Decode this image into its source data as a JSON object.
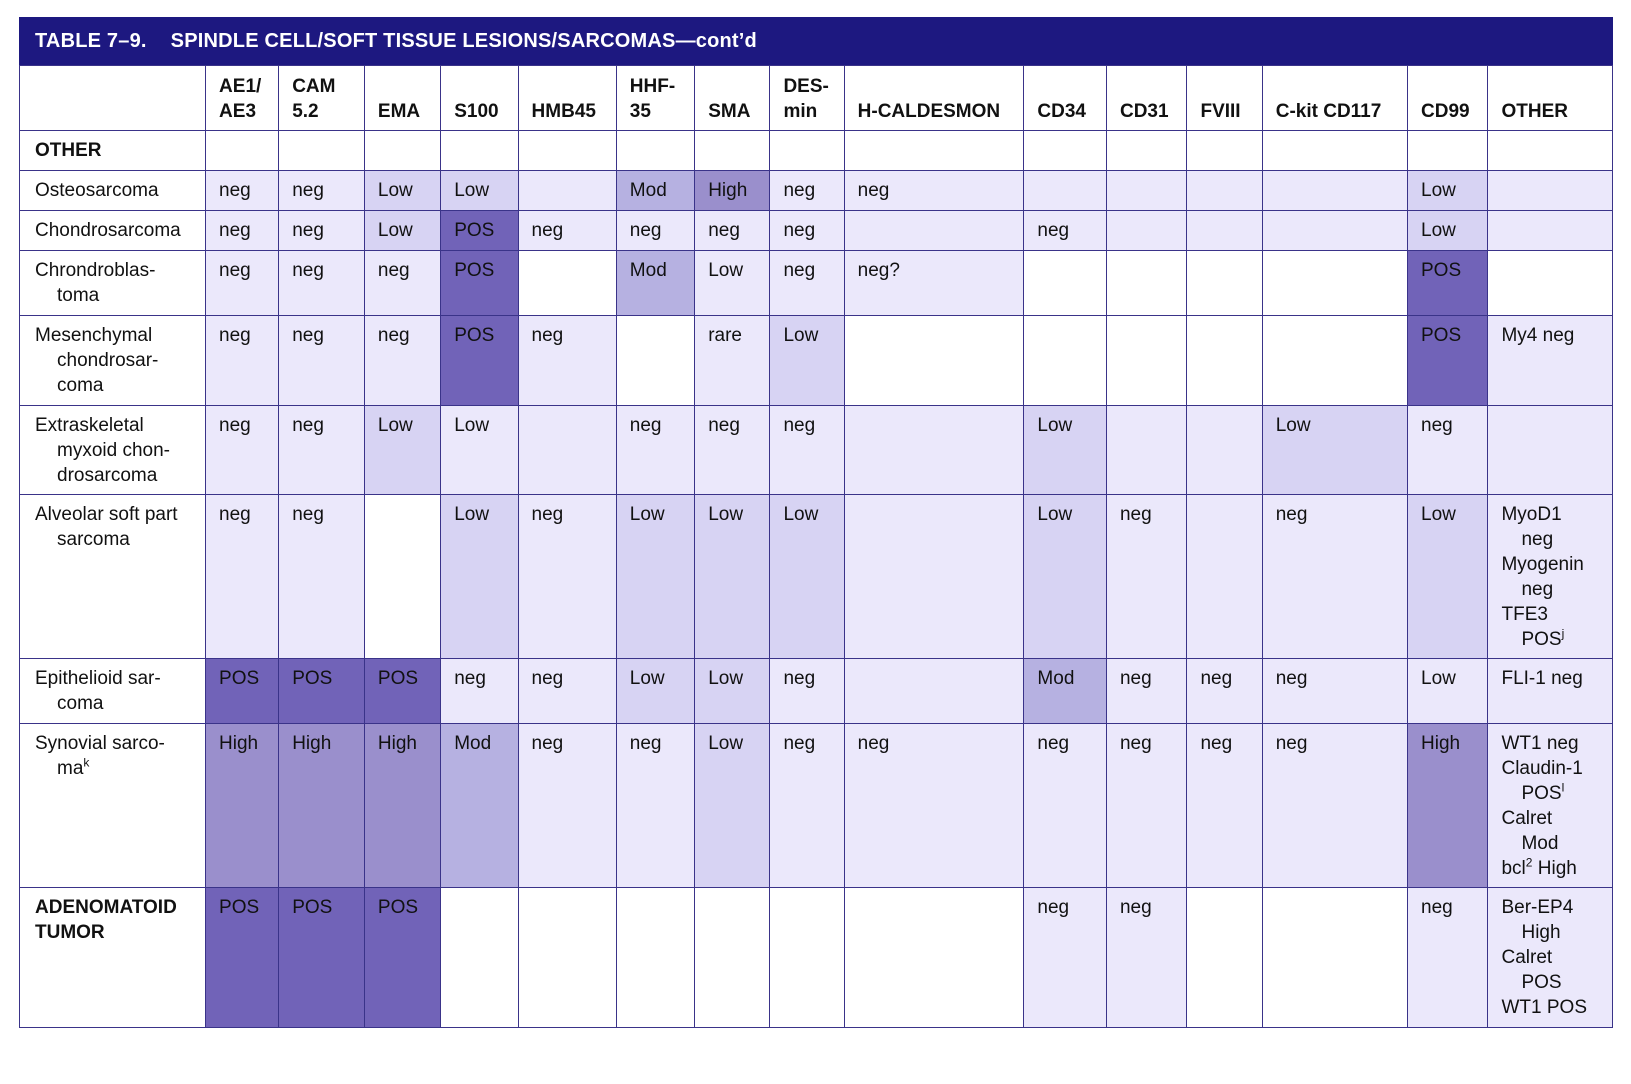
{
  "title": {
    "number": "TABLE 7–9.",
    "text": "SPINDLE CELL/SOFT TISSUE LESIONS/SARCOMAS—cont’d"
  },
  "columns": [
    "",
    "AE1/ AE3",
    "CAM 5.2",
    "EMA",
    "S100",
    "HMB45",
    "HHF- 35",
    "SMA",
    "DES- min",
    "H-CALDESMON",
    "CD34",
    "CD31",
    "FVIII",
    "C-kit CD117",
    "CD99",
    "OTHER"
  ],
  "level_colors": {
    "0": "#ffffff",
    "1": "#ebe8fb",
    "2": "#d7d3f3",
    "3": "#b6b1e1",
    "4": "#9a8fcc",
    "5": "#7163b8"
  },
  "rows": [
    {
      "label": "OTHER",
      "bold": true,
      "height": 40,
      "cells": [
        "",
        "",
        "",
        "",
        "",
        "",
        "",
        "",
        "",
        "",
        "",
        "",
        "",
        "",
        ""
      ],
      "levels": [
        0,
        0,
        0,
        0,
        0,
        0,
        0,
        0,
        0,
        0,
        0,
        0,
        0,
        0,
        0
      ]
    },
    {
      "label": "Osteosarcoma",
      "height": 40,
      "cells": [
        "neg",
        "neg",
        "Low",
        "Low",
        "",
        "Mod",
        "High",
        "neg",
        "neg",
        "",
        "",
        "",
        "",
        "Low",
        ""
      ],
      "levels": [
        1,
        1,
        2,
        2,
        1,
        3,
        4,
        1,
        1,
        1,
        1,
        1,
        1,
        2,
        1
      ]
    },
    {
      "label": "Chondrosarcoma",
      "height": 40,
      "cells": [
        "neg",
        "neg",
        "Low",
        "POS",
        "neg",
        "neg",
        "neg",
        "neg",
        "",
        "neg",
        "",
        "",
        "",
        "Low",
        ""
      ],
      "levels": [
        1,
        1,
        2,
        5,
        1,
        1,
        1,
        1,
        1,
        1,
        1,
        1,
        1,
        2,
        1
      ]
    },
    {
      "label": "Chrondroblas-",
      "label2": "toma",
      "height": 65,
      "cells": [
        "neg",
        "neg",
        "neg",
        "POS",
        "",
        "Mod",
        "Low",
        "neg",
        "neg?",
        "",
        "",
        "",
        "",
        "POS",
        ""
      ],
      "levels": [
        1,
        1,
        1,
        5,
        0,
        3,
        1,
        1,
        1,
        0,
        0,
        0,
        0,
        5,
        0
      ]
    },
    {
      "label": "Mesenchymal",
      "label2": "chondrosar-",
      "label3": "coma",
      "height": 90,
      "cells": [
        "neg",
        "neg",
        "neg",
        "POS",
        "neg",
        "",
        "rare",
        "Low",
        "",
        "",
        "",
        "",
        "",
        "POS",
        "My4 neg"
      ],
      "levels": [
        1,
        1,
        1,
        5,
        1,
        0,
        1,
        2,
        0,
        0,
        0,
        0,
        0,
        5,
        1
      ]
    },
    {
      "label": "Extraskeletal",
      "label2": "myxoid chon-",
      "label3": "drosarcoma",
      "height": 89,
      "cells": [
        "neg",
        "neg",
        "Low",
        "Low",
        "",
        "neg",
        "neg",
        "neg",
        "",
        "Low",
        "",
        "",
        "Low",
        "neg",
        ""
      ],
      "levels": [
        1,
        1,
        2,
        1,
        1,
        1,
        1,
        1,
        1,
        2,
        1,
        1,
        2,
        1,
        1
      ]
    },
    {
      "label": "Alveolar soft part",
      "label2": "sarcoma",
      "height": 164,
      "cells": [
        "neg",
        "neg",
        "",
        "Low",
        "neg",
        "Low",
        "Low",
        "Low",
        "",
        "Low",
        "neg",
        "",
        "neg",
        "Low",
        ""
      ],
      "levels": [
        1,
        1,
        0,
        2,
        1,
        2,
        2,
        2,
        1,
        2,
        1,
        1,
        1,
        2,
        1
      ],
      "other_lines": [
        {
          "text": "MyoD1",
          "indent": false
        },
        {
          "text": "neg",
          "indent": true
        },
        {
          "text": "Myogenin",
          "indent": false
        },
        {
          "text": "neg",
          "indent": true
        },
        {
          "text": "TFE3",
          "indent": false
        },
        {
          "text": "POS",
          "indent": true,
          "sup": "j"
        }
      ]
    },
    {
      "label": "Epithelioid sar-",
      "label2": "coma",
      "height": 65,
      "cells": [
        "POS",
        "POS",
        "POS",
        "neg",
        "neg",
        "Low",
        "Low",
        "neg",
        "",
        "Mod",
        "neg",
        "neg",
        "neg",
        "Low",
        "FLI-1 neg"
      ],
      "levels": [
        5,
        5,
        5,
        1,
        1,
        2,
        2,
        1,
        1,
        3,
        1,
        1,
        1,
        1,
        1
      ]
    },
    {
      "label": "Synovial sarco-",
      "label2": "ma",
      "label2_sup": "k",
      "height": 164,
      "cells": [
        "High",
        "High",
        "High",
        "Mod",
        "neg",
        "neg",
        "Low",
        "neg",
        "neg",
        "neg",
        "neg",
        "neg",
        "neg",
        "High",
        ""
      ],
      "levels": [
        4,
        4,
        4,
        3,
        1,
        1,
        2,
        1,
        1,
        1,
        1,
        1,
        1,
        4,
        1
      ],
      "other_lines": [
        {
          "text": "WT1 neg",
          "indent": false
        },
        {
          "text": "Claudin-1",
          "indent": false
        },
        {
          "text": "POS",
          "indent": true,
          "sup": "l"
        },
        {
          "text": "Calret",
          "indent": false
        },
        {
          "text": "Mod",
          "indent": true
        },
        {
          "text": "bcl",
          "indent": false,
          "sup": "2",
          "after": " High"
        }
      ]
    },
    {
      "label": "ADENOMATOID",
      "label2": "TUMOR",
      "bold": true,
      "height": 140,
      "cells": [
        "POS",
        "POS",
        "POS",
        "",
        "",
        "",
        "",
        "",
        "",
        "neg",
        "neg",
        "",
        "",
        "neg",
        ""
      ],
      "levels": [
        5,
        5,
        5,
        0,
        0,
        0,
        0,
        0,
        0,
        1,
        1,
        0,
        0,
        1,
        1
      ],
      "other_lines": [
        {
          "text": "Ber-EP4",
          "indent": false
        },
        {
          "text": "High",
          "indent": true
        },
        {
          "text": "Calret",
          "indent": false
        },
        {
          "text": "POS",
          "indent": true
        },
        {
          "text": "WT1 POS",
          "indent": false
        }
      ]
    }
  ]
}
